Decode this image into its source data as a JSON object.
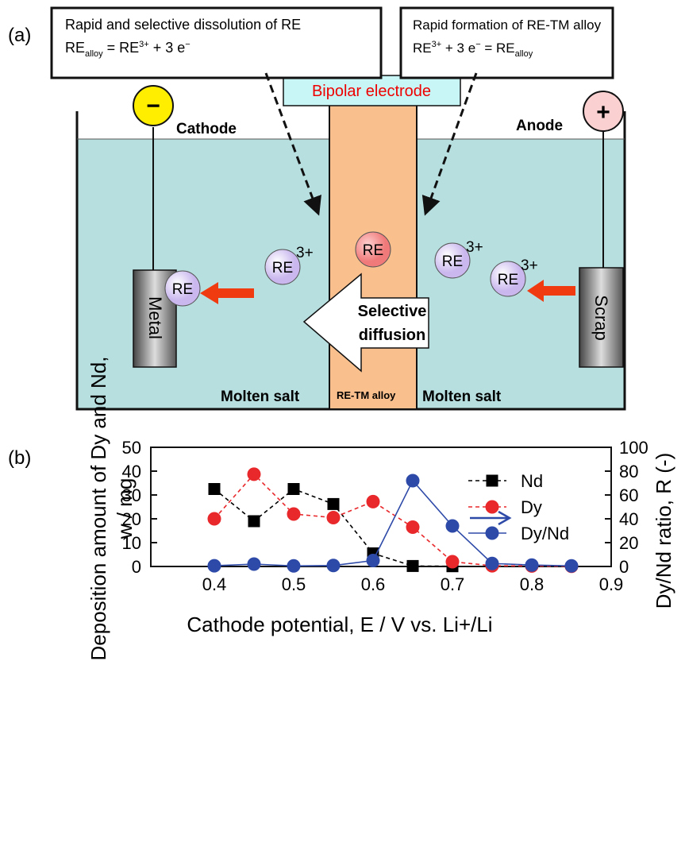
{
  "panel_a": {
    "label": "(a)",
    "box_left": {
      "line1": "Rapid and selective dissolution of RE",
      "eq": [
        "RE",
        "alloy",
        " = RE",
        "3+",
        " + 3 e",
        "−"
      ]
    },
    "box_right": {
      "line1": "Rapid formation of RE-TM alloy",
      "eq": [
        "RE",
        "3+",
        " + 3 e",
        "−",
        " = RE",
        "alloy"
      ]
    },
    "electrode": "Bipolar electrode",
    "cathode_sign": "−",
    "anode_sign": "+",
    "cathode": "Cathode",
    "anode": "Anode",
    "metal": "Metal",
    "scrap": "Scrap",
    "ion": "RE",
    "charge": "3+",
    "diffusion": [
      "Selective",
      "diffusion"
    ],
    "molten_salt": "Molten salt",
    "alloy": "RE-TM alloy"
  },
  "chart_data": {
    "type": "line",
    "panel_label": "(b)",
    "x": [
      0.4,
      0.45,
      0.5,
      0.55,
      0.6,
      0.65,
      0.7,
      0.75,
      0.8,
      0.85
    ],
    "series": [
      {
        "name": "Nd",
        "color": "#000000",
        "line_style": "dashed",
        "marker": "square",
        "values": [
          32.5,
          19,
          32.5,
          26.2,
          5.5,
          0.2,
          0.1,
          null,
          null,
          null
        ]
      },
      {
        "name": "Dy",
        "color": "#e8282b",
        "line_style": "dashed",
        "marker": "circle",
        "values": [
          20,
          38.7,
          22,
          20.5,
          27.2,
          16.5,
          2,
          0.3,
          0.2,
          0.1
        ]
      },
      {
        "name": "Dy/Nd",
        "color": "#2e4aa8",
        "line_style": "solid",
        "marker": "circle",
        "axis": "y2",
        "values": [
          0.6,
          2,
          0.5,
          0.8,
          5,
          72,
          34,
          2.5,
          1.2,
          0.5
        ]
      }
    ],
    "xlim": [
      0.32,
      0.9
    ],
    "xticks": [
      0.4,
      0.5,
      0.6,
      0.7,
      0.8,
      0.9
    ],
    "ylim": [
      0,
      50
    ],
    "yticks": [
      0,
      10,
      20,
      30,
      40,
      50
    ],
    "y2lim": [
      0,
      100
    ],
    "y2ticks": [
      0,
      20,
      40,
      60,
      80,
      100
    ],
    "ylabel": [
      "Deposition amount of Dy and Nd,",
      "w / mg"
    ],
    "y2label": "Dy/Nd ratio, R (-)",
    "xlabel": "Cathode potential, E / V vs. Li+/Li",
    "legend": "upper right"
  }
}
